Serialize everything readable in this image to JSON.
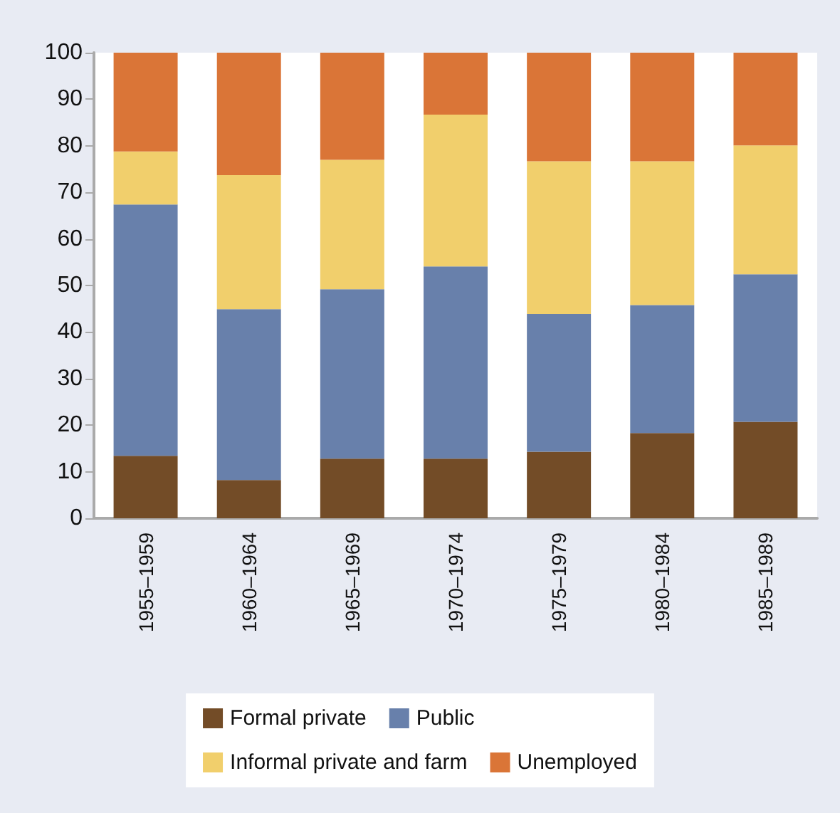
{
  "chart_data": {
    "type": "bar",
    "stacked": true,
    "categories": [
      "1955–1959",
      "1960–1964",
      "1965–1969",
      "1970–1974",
      "1975–1979",
      "1980–1984",
      "1985–1989"
    ],
    "series": [
      {
        "name": "Formal private",
        "color": "#734c27",
        "values": [
          13.4,
          8.2,
          12.8,
          12.8,
          14.3,
          18.3,
          20.7
        ]
      },
      {
        "name": "Public",
        "color": "#6880ab",
        "values": [
          54.0,
          36.7,
          36.4,
          41.3,
          29.6,
          27.5,
          31.7
        ]
      },
      {
        "name": "Informal private and farm",
        "color": "#f1cf6c",
        "values": [
          11.4,
          28.8,
          27.8,
          32.6,
          32.8,
          30.9,
          27.7
        ]
      },
      {
        "name": "Unemployed",
        "color": "#da7537",
        "values": [
          21.2,
          26.3,
          23.0,
          13.3,
          23.3,
          23.3,
          19.9
        ]
      }
    ],
    "ylim": [
      0,
      100
    ],
    "yticks": [
      0,
      10,
      20,
      30,
      40,
      50,
      60,
      70,
      80,
      90,
      100
    ],
    "grid": false,
    "legend": "bottom"
  }
}
